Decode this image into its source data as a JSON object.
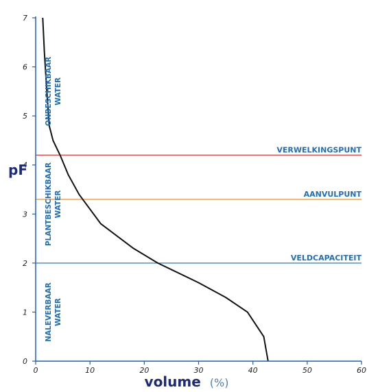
{
  "chart_data": {
    "type": "line",
    "xlabel": "volume",
    "xunit": "(%)",
    "ylabel": "pF",
    "xlim": [
      0,
      60
    ],
    "ylim": [
      0,
      7
    ],
    "xticks": [
      0,
      10,
      20,
      30,
      40,
      50,
      60
    ],
    "yticks": [
      0,
      1,
      2,
      3,
      4,
      5,
      6,
      7
    ],
    "grid": false,
    "series": [
      {
        "x": [
          1.3,
          1.6,
          2.0,
          2.5,
          3.2,
          4.5,
          6.0,
          8.0,
          12.0,
          18.0,
          22.5,
          30.0,
          35.0,
          39.0,
          42.0,
          42.8
        ],
        "y": [
          7.0,
          6.3,
          5.6,
          4.8,
          4.5,
          4.2,
          3.8,
          3.4,
          2.8,
          2.3,
          2.0,
          1.6,
          1.3,
          1.0,
          0.5,
          0.0
        ]
      }
    ],
    "hlines": [
      {
        "y": 4.2,
        "label": "VERWELKINGSPUNT",
        "color": "#e05252"
      },
      {
        "y": 3.3,
        "label": "AANVULPUNT",
        "color": "#f0a050"
      },
      {
        "y": 2.0,
        "label": "VELDCAPACITEIT",
        "color": "#4a90d9"
      }
    ],
    "zones": [
      {
        "lines": [
          "ONBESCHIKBAAR",
          "WATER"
        ],
        "y_center": 5.5
      },
      {
        "lines": [
          "PLANTBESCHIKBAAR",
          "WATER"
        ],
        "y_center": 3.2
      },
      {
        "lines": [
          "NALEVERBAAR",
          "WATER"
        ],
        "y_center": 1.0
      }
    ],
    "colors": {
      "axis": "#1f5fb0",
      "curve": "#111111",
      "label": "#1f6fb8",
      "title": "#1b2a7a"
    }
  }
}
